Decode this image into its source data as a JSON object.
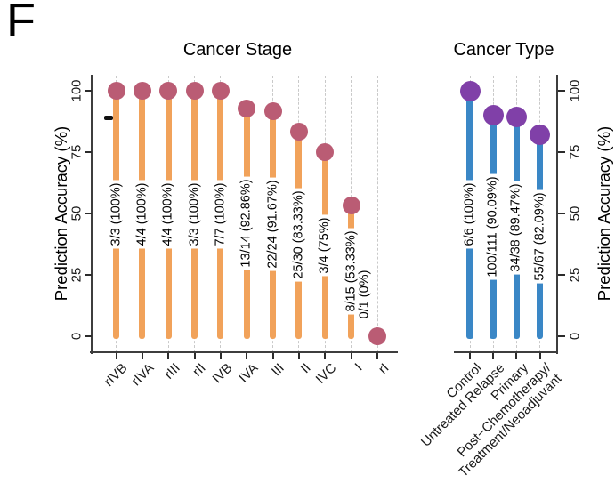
{
  "panel_label": "F",
  "colors": {
    "stage_stem": "#F1A25A",
    "stage_dot": "#BA5C74",
    "type_stem": "#3A87C6",
    "type_dot": "#8040A8",
    "gridline": "#C9C9C9",
    "axis": "#3D3D3D",
    "text": "#1A1A1A"
  },
  "chart_data": [
    {
      "type": "lollipop",
      "title": "Cancer Stage",
      "ylabel": "Prediction Accuracy (%)",
      "ylim": [
        0,
        100
      ],
      "yticks": [
        0,
        25,
        50,
        75,
        100
      ],
      "grid": "vertical-dashed",
      "axis_side": "left",
      "categories": [
        "rIVB",
        "rIVA",
        "rIII",
        "rII",
        "IVB",
        "IVA",
        "III",
        "II",
        "IVC",
        "I",
        "rI"
      ],
      "values": [
        100,
        100,
        100,
        100,
        100,
        92.86,
        91.67,
        83.33,
        75,
        53.33,
        0
      ],
      "point_labels": [
        "3/3 (100%)",
        "4/4 (100%)",
        "4/4 (100%)",
        "3/3 (100%)",
        "7/7 (100%)",
        "13/14 (92.86%)",
        "22/24 (91.67%)",
        "25/30 (83.33%)",
        "3/4 (75%)",
        "8/15 (53.33%)",
        "0/1 (0%)"
      ],
      "stem_color": "#F1A25A",
      "dot_color": "#BA5C74"
    },
    {
      "type": "lollipop",
      "title": "Cancer Type",
      "ylabel": "Prediction Accuracy (%)",
      "ylim": [
        0,
        100
      ],
      "yticks": [
        0,
        25,
        50,
        75,
        100
      ],
      "grid": "vertical-dashed",
      "axis_side": "right",
      "categories": [
        "Control",
        "Untreated Relapse",
        "Primary",
        "Post−Chemotherapy/\nTreatment/Neoadjuvant"
      ],
      "values": [
        100,
        90.09,
        89.47,
        82.09
      ],
      "point_labels": [
        "6/6 (100%)",
        "100/111 (90.09%)",
        "34/38 (89.47%)",
        "55/67 (82.09%)"
      ],
      "stem_color": "#3A87C6",
      "dot_color": "#8040A8"
    }
  ]
}
